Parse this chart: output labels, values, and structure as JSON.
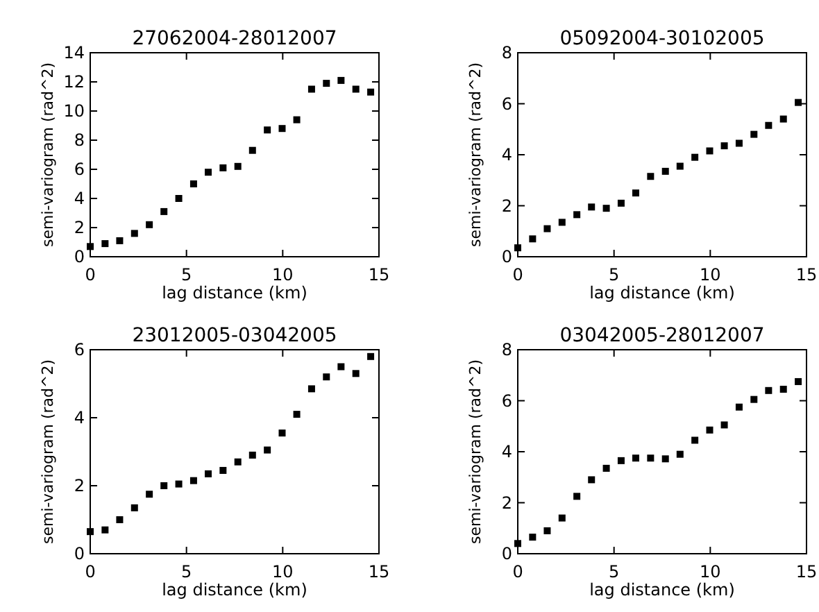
{
  "chart_data": [
    {
      "type": "scatter",
      "title": "27062004-28012007",
      "xlabel": "lag distance (km)",
      "ylabel": "semi-variogram (rad^2)",
      "marker": "square",
      "grid": false,
      "x": [
        0,
        0.77,
        1.53,
        2.3,
        3.07,
        3.83,
        4.6,
        5.37,
        6.13,
        6.9,
        7.67,
        8.43,
        9.2,
        9.97,
        10.73,
        11.5,
        12.27,
        13.03,
        13.8,
        14.57
      ],
      "series": [
        {
          "color": "#000000",
          "values": [
            0.7,
            0.9,
            1.1,
            1.6,
            2.2,
            3.1,
            4.0,
            5.0,
            5.8,
            6.1,
            6.2,
            7.3,
            8.7,
            8.8,
            9.4,
            11.5,
            11.9,
            12.1,
            11.5,
            11.3
          ]
        }
      ],
      "xlim": [
        0,
        15
      ],
      "xticks": [
        0,
        5,
        10,
        15
      ],
      "ylim": [
        0,
        14
      ],
      "yticks": [
        0,
        2,
        4,
        6,
        8,
        10,
        12,
        14
      ]
    },
    {
      "type": "scatter",
      "title": "05092004-30102005",
      "xlabel": "lag distance (km)",
      "ylabel": "semi-variogram (rad^2)",
      "marker": "square",
      "grid": false,
      "x": [
        0,
        0.77,
        1.53,
        2.3,
        3.07,
        3.83,
        4.6,
        5.37,
        6.13,
        6.9,
        7.67,
        8.43,
        9.2,
        9.97,
        10.73,
        11.5,
        12.27,
        13.03,
        13.8,
        14.57
      ],
      "series": [
        {
          "color": "#000000",
          "values": [
            0.35,
            0.7,
            1.1,
            1.35,
            1.65,
            1.95,
            1.9,
            2.1,
            2.5,
            3.15,
            3.35,
            3.55,
            3.9,
            4.15,
            4.35,
            4.45,
            4.8,
            5.15,
            5.4,
            6.05
          ]
        }
      ],
      "xlim": [
        0,
        15
      ],
      "xticks": [
        0,
        5,
        10,
        15
      ],
      "ylim": [
        0,
        8
      ],
      "yticks": [
        0,
        2,
        4,
        6,
        8
      ]
    },
    {
      "type": "scatter",
      "title": "23012005-03042005",
      "xlabel": "lag distance (km)",
      "ylabel": "semi-variogram (rad^2)",
      "marker": "square",
      "grid": false,
      "x": [
        0,
        0.77,
        1.53,
        2.3,
        3.07,
        3.83,
        4.6,
        5.37,
        6.13,
        6.9,
        7.67,
        8.43,
        9.2,
        9.97,
        10.73,
        11.5,
        12.27,
        13.03,
        13.8,
        14.57
      ],
      "series": [
        {
          "color": "#000000",
          "values": [
            0.65,
            0.7,
            1.0,
            1.35,
            1.75,
            2.0,
            2.05,
            2.15,
            2.35,
            2.45,
            2.7,
            2.9,
            3.05,
            3.55,
            4.1,
            4.85,
            5.2,
            5.5,
            5.3,
            5.8
          ]
        }
      ],
      "xlim": [
        0,
        15
      ],
      "xticks": [
        0,
        5,
        10,
        15
      ],
      "ylim": [
        0,
        6
      ],
      "yticks": [
        0,
        2,
        4,
        6
      ]
    },
    {
      "type": "scatter",
      "title": "03042005-28012007",
      "xlabel": "lag distance (km)",
      "ylabel": "semi-variogram (rad^2)",
      "marker": "square",
      "grid": false,
      "x": [
        0,
        0.77,
        1.53,
        2.3,
        3.07,
        3.83,
        4.6,
        5.37,
        6.13,
        6.9,
        7.67,
        8.43,
        9.2,
        9.97,
        10.73,
        11.5,
        12.27,
        13.03,
        13.8,
        14.57
      ],
      "series": [
        {
          "color": "#000000",
          "values": [
            0.4,
            0.65,
            0.9,
            1.4,
            2.25,
            2.9,
            3.35,
            3.65,
            3.75,
            3.75,
            3.72,
            3.9,
            4.45,
            4.85,
            5.05,
            5.75,
            6.05,
            6.4,
            6.45,
            6.75
          ]
        }
      ],
      "xlim": [
        0,
        15
      ],
      "xticks": [
        0,
        5,
        10,
        15
      ],
      "ylim": [
        0,
        8
      ],
      "yticks": [
        0,
        2,
        4,
        6,
        8
      ]
    }
  ]
}
